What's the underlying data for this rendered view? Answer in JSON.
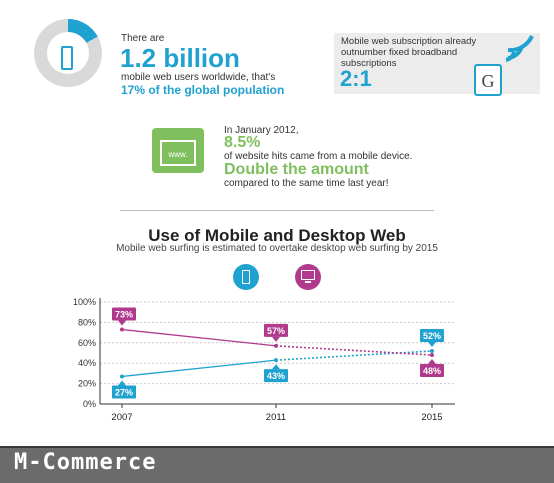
{
  "stat1": {
    "intro": "There are",
    "big": "1.2 billion",
    "line2": "mobile web users worldwide, that's",
    "highlight": "17% of the global population",
    "ring_fraction": 0.17,
    "icon": "smartphone-icon"
  },
  "stat2": {
    "line1": "Mobile web subscription already",
    "line2": "outnumber fixed broadband",
    "line3": "subscriptions",
    "ratio": "2:1",
    "tile_letter": "G",
    "icons": [
      "wifi-signal-icon",
      "g-tile-icon"
    ]
  },
  "stat3": {
    "line1": "In January 2012,",
    "percent": "8.5%",
    "line2": "of website hits came from a mobile device.",
    "headline": "Double the amount",
    "line3": "compared to the same time last year!",
    "browser_text": "www.",
    "icon": "browser-window-icon"
  },
  "chart_header": {
    "title": "Use of Mobile and Desktop Web",
    "subtitle": "Mobile web surfing is estimated to overtake desktop web surfing by 2015",
    "icons": [
      "mobile-icon",
      "desktop-icon"
    ]
  },
  "chart_data": {
    "type": "line",
    "x": [
      "2007",
      "2011",
      "2015"
    ],
    "ylim": [
      0,
      100
    ],
    "yticks": [
      "0%",
      "20%",
      "40%",
      "60%",
      "80%",
      "100%"
    ],
    "grid": true,
    "series": [
      {
        "values": [
          27,
          43,
          52
        ],
        "labels": [
          "27%",
          "43%",
          "52%"
        ],
        "color": "#1fa2cf"
      },
      {
        "values": [
          73,
          57,
          48
        ],
        "labels": [
          "73%",
          "57%",
          "48%"
        ],
        "color": "#b03a8c"
      }
    ]
  },
  "footer": {
    "text": "M-Commerce"
  },
  "colors": {
    "blue": "#1fa2cf",
    "magenta": "#b03a8c",
    "green": "#7fbf5e"
  }
}
